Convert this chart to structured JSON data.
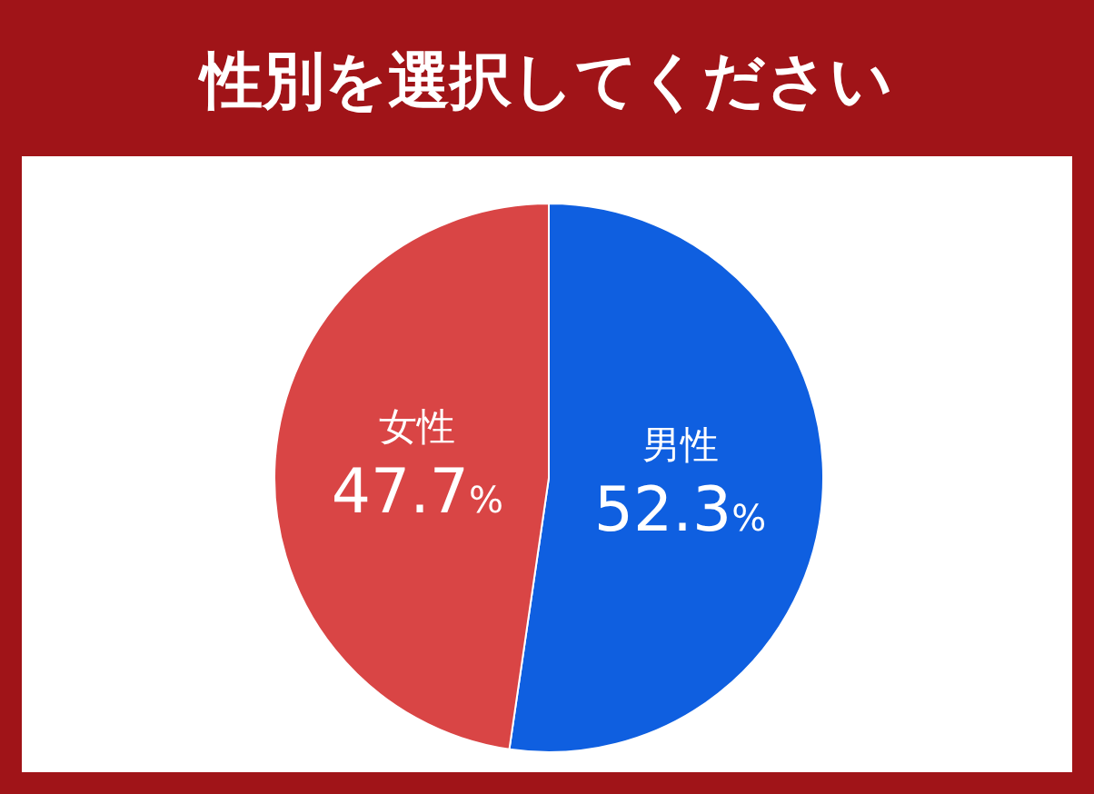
{
  "chart_data": {
    "type": "pie",
    "title": "性別を選択してください",
    "categories": [
      "男性",
      "女性"
    ],
    "values": [
      52.3,
      47.7
    ],
    "colors": [
      "#0f5fe0",
      "#d94545"
    ],
    "value_labels": [
      "52.3%",
      "47.7%"
    ]
  }
}
